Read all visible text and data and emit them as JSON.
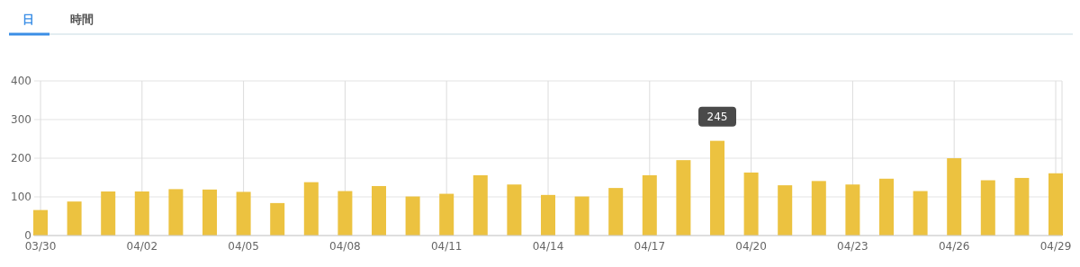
{
  "chart_data": {
    "type": "bar",
    "categories": [
      "03/30",
      null,
      null,
      "04/02",
      null,
      null,
      "04/05",
      null,
      null,
      "04/08",
      null,
      null,
      "04/11",
      null,
      null,
      "04/14",
      null,
      null,
      "04/17",
      null,
      null,
      "04/20",
      null,
      null,
      "04/23",
      null,
      null,
      "04/26",
      null,
      null,
      "04/29"
    ],
    "values": [
      66,
      88,
      114,
      114,
      120,
      119,
      113,
      84,
      138,
      115,
      128,
      101,
      108,
      156,
      132,
      105,
      101,
      123,
      156,
      195,
      245,
      163,
      130,
      141,
      132,
      147,
      115,
      200,
      143,
      149,
      161
    ],
    "color": "#ecc240",
    "ylim": [
      0,
      400
    ],
    "yticks": [
      0,
      100,
      200,
      300,
      400
    ],
    "grid": true,
    "annotations": [
      "日",
      "時間",
      {
        "text": "245",
        "y": 245
      }
    ]
  }
}
